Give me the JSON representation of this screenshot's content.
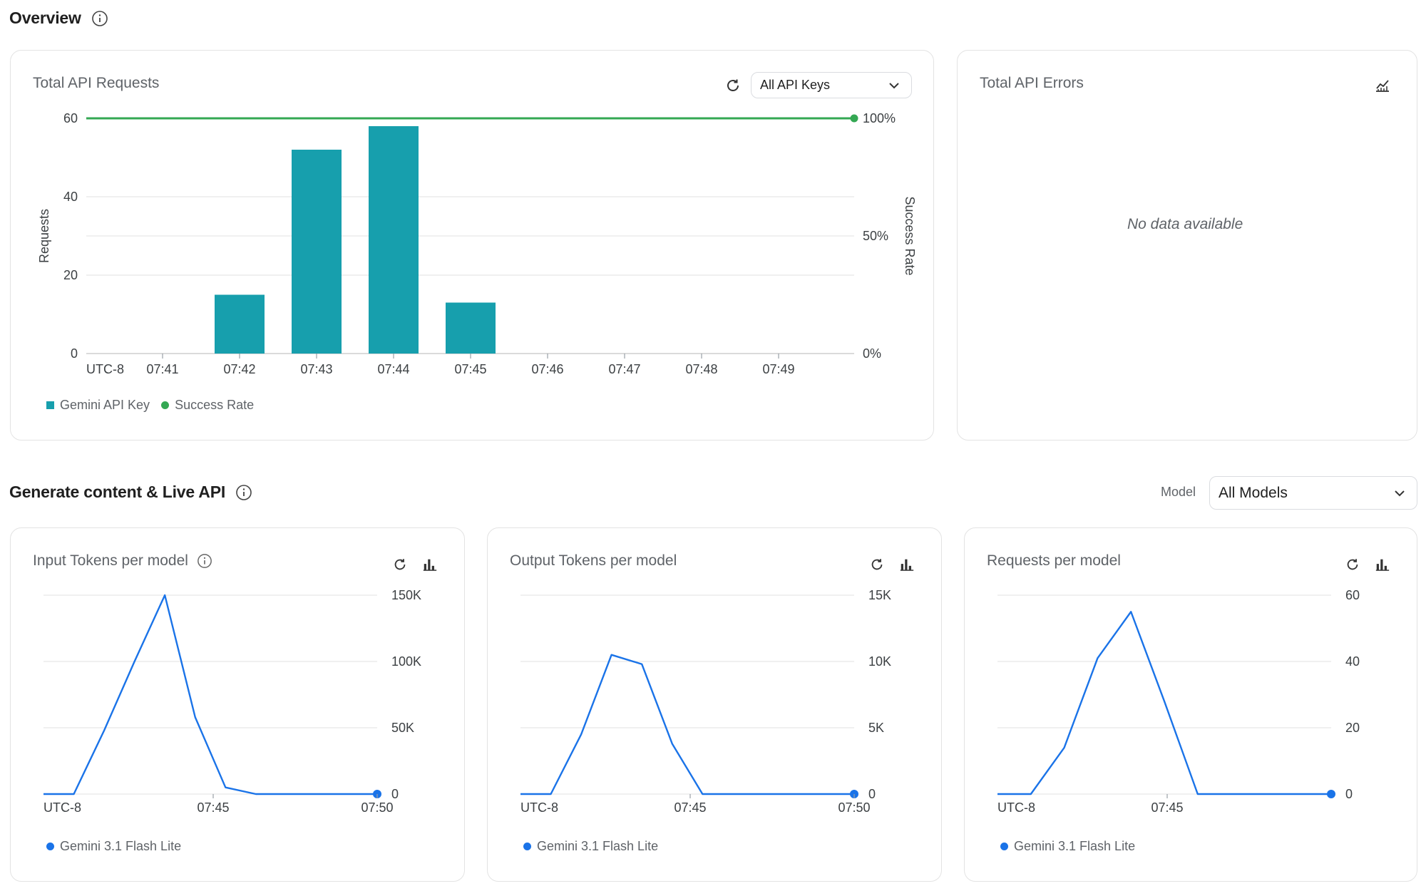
{
  "overview": {
    "title": "Overview",
    "requests_card": {
      "title": "Total API Requests",
      "key_select": "All API Keys",
      "legend_key": "Gemini API Key",
      "legend_success": "Success Rate"
    },
    "errors_card": {
      "title": "Total API Errors",
      "empty": "No data available"
    }
  },
  "generate": {
    "title": "Generate content & Live API",
    "model_label": "Model",
    "model_select": "All Models",
    "cards": [
      {
        "title": "Input Tokens per model",
        "legend": "Gemini 3.1 Flash Lite"
      },
      {
        "title": "Output Tokens per model",
        "legend": "Gemini 3.1 Flash Lite"
      },
      {
        "title": "Requests per model",
        "legend": "Gemini 3.1 Flash Lite"
      }
    ]
  },
  "colors": {
    "bar": "#179fad",
    "success": "#34a853",
    "line": "#1a73e8"
  },
  "chart_data": [
    {
      "type": "bar",
      "title": "Total API Requests",
      "xlabel": "",
      "ylabel": "Requests",
      "y2label": "Success Rate",
      "categories": [
        "07:41",
        "07:42",
        "07:43",
        "07:44",
        "07:45",
        "07:46",
        "07:47",
        "07:48",
        "07:49"
      ],
      "x_first_label": "UTC-8",
      "series": [
        {
          "name": "Gemini API Key",
          "type": "bar",
          "values": [
            0,
            15,
            52,
            58,
            13,
            0,
            0,
            0,
            0
          ]
        },
        {
          "name": "Success Rate",
          "type": "line",
          "axis": "right",
          "values": [
            100,
            100,
            100,
            100,
            100,
            100,
            100,
            100,
            100
          ]
        }
      ],
      "ylim": [
        0,
        60
      ],
      "yticks": [
        "0",
        "20",
        "40",
        "60"
      ],
      "y2ticks": [
        "0%",
        "50%",
        "100%"
      ],
      "legend": "bottom-left"
    },
    {
      "type": "line",
      "title": "Input Tokens per model",
      "x_labels": [
        "UTC-8",
        "07:45",
        "07:50"
      ],
      "yticks": [
        "0",
        "50K",
        "100K",
        "150K"
      ],
      "ylim": [
        0,
        150000
      ],
      "series": [
        {
          "name": "Gemini 3.1 Flash Lite",
          "values": [
            0,
            0,
            48000,
            100000,
            150000,
            58000,
            5000,
            0,
            0,
            0,
            0,
            0
          ]
        }
      ],
      "legend": "bottom-left"
    },
    {
      "type": "line",
      "title": "Output Tokens per model",
      "x_labels": [
        "UTC-8",
        "07:45",
        "07:50"
      ],
      "yticks": [
        "0",
        "5K",
        "10K",
        "15K"
      ],
      "ylim": [
        0,
        15000
      ],
      "series": [
        {
          "name": "Gemini 3.1 Flash Lite",
          "values": [
            0,
            0,
            4500,
            10500,
            9800,
            3800,
            0,
            0,
            0,
            0,
            0,
            0
          ]
        }
      ],
      "legend": "bottom-left"
    },
    {
      "type": "line",
      "title": "Requests per model",
      "x_labels": [
        "UTC-8",
        "07:45"
      ],
      "yticks": [
        "0",
        "20",
        "40",
        "60"
      ],
      "ylim": [
        0,
        60
      ],
      "series": [
        {
          "name": "Gemini 3.1 Flash Lite",
          "values": [
            0,
            0,
            14,
            41,
            55,
            28,
            0,
            0,
            0,
            0,
            0
          ]
        }
      ],
      "legend": "bottom-left"
    }
  ]
}
